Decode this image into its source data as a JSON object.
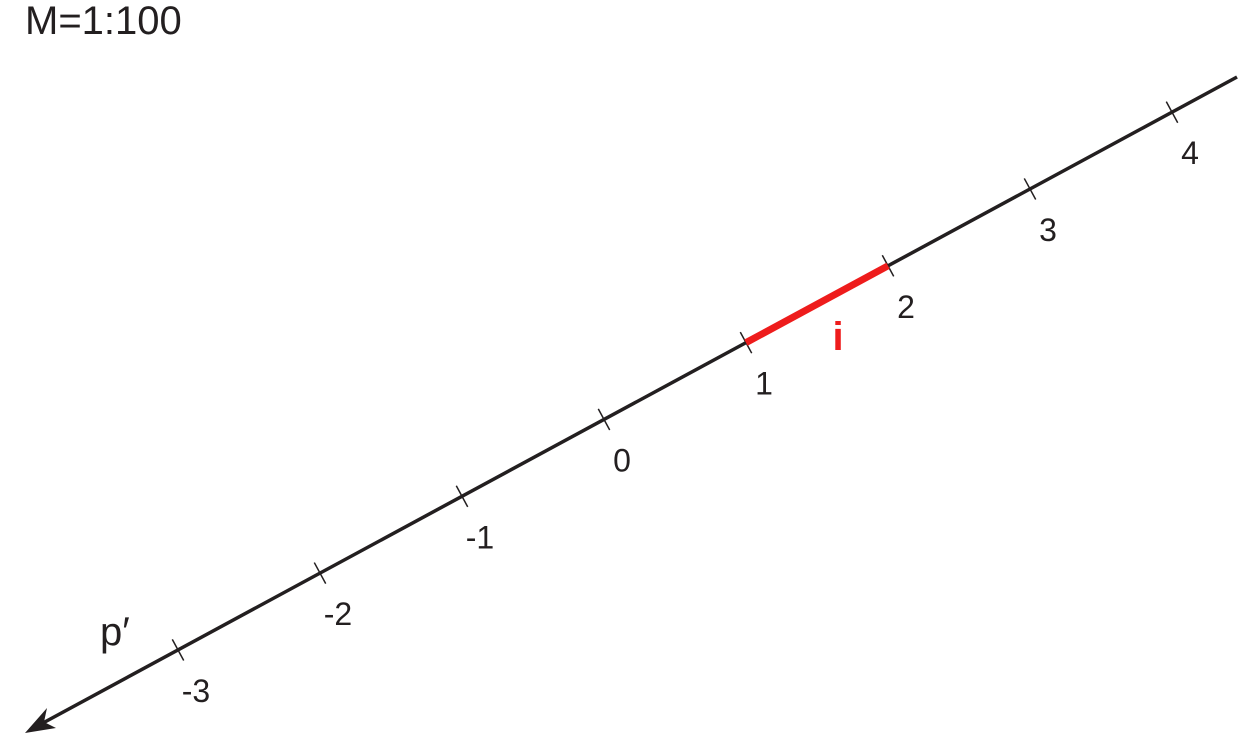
{
  "scale": "M=1:100",
  "line_label": "p′",
  "ticks": [
    "-3",
    "-2",
    "-1",
    "0",
    "1",
    "2",
    "3",
    "4"
  ],
  "interval_label": "i"
}
